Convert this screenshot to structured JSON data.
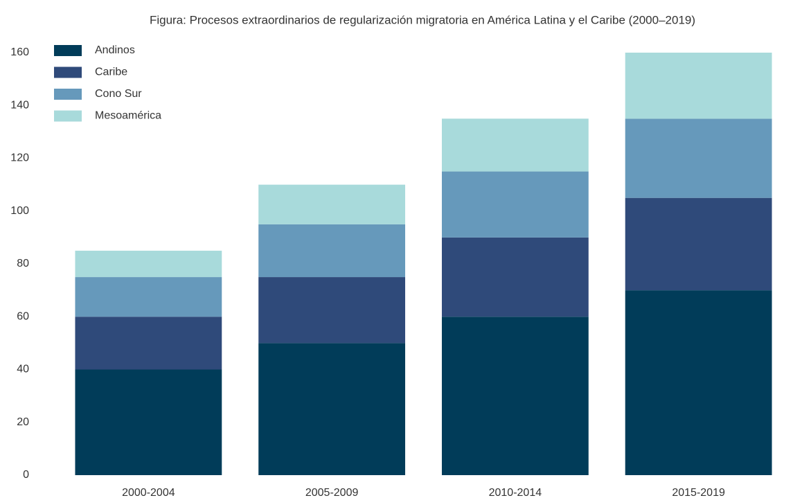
{
  "chart_data": {
    "type": "stacked_bar",
    "title": "Figura: Procesos extraordinarios de regularización migratoria en América Latina y el Caribe (2000–2019)",
    "categories": [
      "2000-2004",
      "2005-2009",
      "2010-2014",
      "2015-2019"
    ],
    "series": [
      {
        "name": "Andinos",
        "color": "#013c59",
        "values": [
          40,
          50,
          60,
          70
        ]
      },
      {
        "name": "Caribe",
        "color": "#2f4a7a",
        "values": [
          20,
          25,
          30,
          35
        ]
      },
      {
        "name": "Cono Sur",
        "color": "#6699bb",
        "values": [
          15,
          20,
          25,
          30
        ]
      },
      {
        "name": "Mesoamérica",
        "color": "#a8dadb",
        "values": [
          10,
          15,
          20,
          25
        ]
      }
    ],
    "ylim": [
      0,
      160
    ],
    "yticks": [
      0,
      20,
      40,
      60,
      80,
      100,
      120,
      140,
      160
    ],
    "grid": false,
    "legend": "upper left"
  }
}
